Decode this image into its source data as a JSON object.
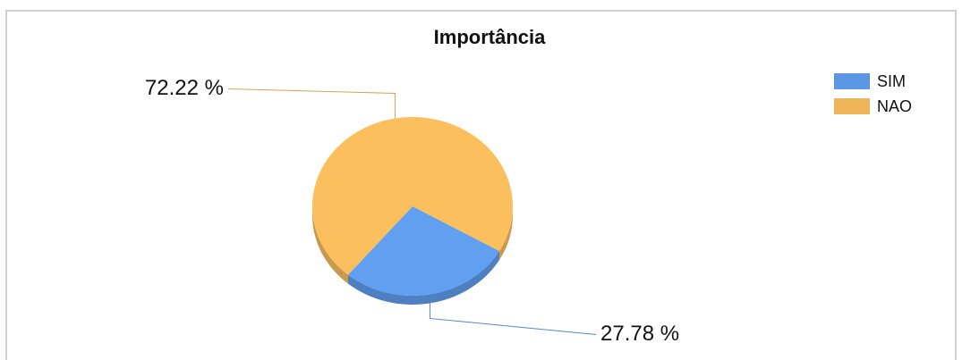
{
  "chart_data": {
    "type": "pie",
    "title": "Importância",
    "categories": [
      "SIM",
      "NAO"
    ],
    "values": [
      27.78,
      72.22
    ],
    "value_labels": [
      "27.78 %",
      "72.22 %"
    ],
    "colors": [
      "#619ff0",
      "#fcbf5e"
    ],
    "legend": "top-right"
  }
}
